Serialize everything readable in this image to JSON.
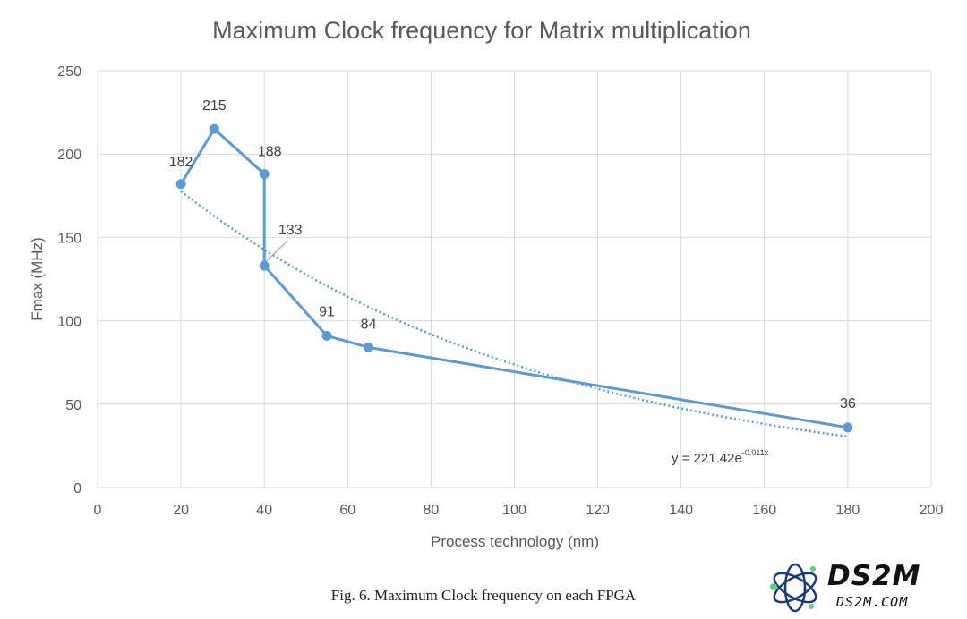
{
  "chart_data": {
    "type": "line",
    "title": "Maximum Clock frequency for Matrix multiplication",
    "xlabel": "Process technology (nm)",
    "ylabel": "Fmax (MHz)",
    "xlim": [
      0,
      200
    ],
    "ylim": [
      0,
      250
    ],
    "x_ticks": [
      0,
      20,
      40,
      60,
      80,
      100,
      120,
      140,
      160,
      180,
      200
    ],
    "y_ticks": [
      0,
      50,
      100,
      150,
      200,
      250
    ],
    "grid": true,
    "series": [
      {
        "name": "Fmax",
        "color": "#5b9bd5",
        "points": [
          {
            "x": 20,
            "y": 182,
            "label": "182"
          },
          {
            "x": 28,
            "y": 215,
            "label": "215"
          },
          {
            "x": 40,
            "y": 188,
            "label": "188"
          },
          {
            "x": 40,
            "y": 133,
            "label": "133"
          },
          {
            "x": 55,
            "y": 91,
            "label": "91"
          },
          {
            "x": 65,
            "y": 84,
            "label": "84"
          },
          {
            "x": 180,
            "y": 36,
            "label": "36"
          }
        ]
      }
    ],
    "trendline": {
      "type": "exponential",
      "a": 221.42,
      "b": -0.011,
      "x_range": [
        20,
        180
      ],
      "style": "dotted",
      "color": "#5b9bd5",
      "equation_text": "y = 221.42e",
      "equation_exponent": "-0.011x"
    }
  },
  "caption": "Fig. 6.  Maximum Clock frequency on each FPGA",
  "watermark": {
    "main": "DS2M",
    "sub": "DS2M.COM"
  }
}
